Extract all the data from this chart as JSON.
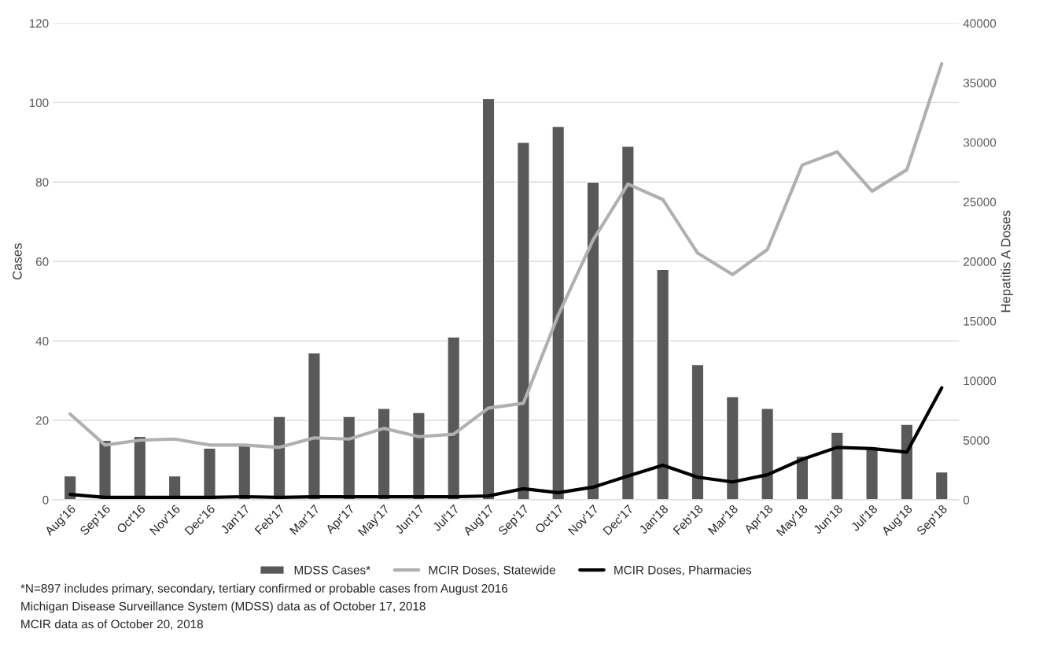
{
  "chart_data": {
    "type": "bar",
    "categories": [
      "Aug'16",
      "Sep'16",
      "Oct'16",
      "Nov'16",
      "Dec'16",
      "Jan'17",
      "Feb'17",
      "Mar'17",
      "Apr'17",
      "May'17",
      "Jun'17",
      "Jul'17",
      "Aug'17",
      "Sep'17",
      "Oct'17",
      "Nov'17",
      "Dec'17",
      "Jan'18",
      "Feb'18",
      "Mar'18",
      "Apr'18",
      "May'18",
      "Jun'18",
      "Jul'18",
      "Aug'18",
      "Sep'18"
    ],
    "series": [
      {
        "name": "MDSS Cases*",
        "color": "#595959",
        "values": [
          6,
          15,
          16,
          6,
          13,
          14,
          21,
          37,
          21,
          23,
          22,
          41,
          101,
          90,
          94,
          80,
          89,
          58,
          34,
          26,
          23,
          11,
          17,
          13,
          19,
          7
        ]
      },
      {
        "name": "MCIR Doses, Statewide",
        "type": "line",
        "axis": "y2",
        "color": "#b0b0b0",
        "values": [
          7200,
          4600,
          5000,
          5100,
          4600,
          4600,
          4400,
          5200,
          5100,
          6000,
          5300,
          5500,
          7700,
          8100,
          15500,
          21800,
          26500,
          25200,
          20700,
          18900,
          21000,
          28100,
          29200,
          25900,
          27700,
          36600
        ]
      },
      {
        "name": "MCIR Doses, Pharmacies",
        "type": "line",
        "axis": "y2",
        "color": "#000000",
        "values": [
          450,
          200,
          200,
          200,
          200,
          260,
          200,
          250,
          250,
          250,
          250,
          250,
          330,
          930,
          600,
          1060,
          1990,
          2900,
          1900,
          1500,
          2100,
          3400,
          4400,
          4300,
          4000,
          9400
        ]
      }
    ],
    "ylabel": "Cases",
    "y2label": "Hepatitis A Doses",
    "ylim": [
      0,
      120
    ],
    "yticks": [
      0,
      20,
      40,
      60,
      80,
      100,
      120
    ],
    "y2lim": [
      0,
      40000
    ],
    "y2ticks": [
      0,
      5000,
      10000,
      15000,
      20000,
      25000,
      30000,
      35000,
      40000
    ],
    "grid": "y",
    "legend": "bottom",
    "marker": "none",
    "line_style": "solid",
    "annotations": [
      "*N=897 includes primary, secondary, tertiary confirmed or probable cases from August 2016",
      "Michigan Disease Surveillance System (MDSS) data as of October 17, 2018",
      "MCIR data as of October 20, 2018"
    ]
  }
}
